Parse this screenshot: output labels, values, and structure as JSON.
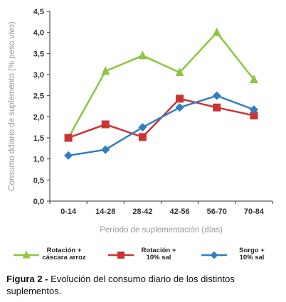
{
  "chart_data": {
    "type": "line",
    "categories": [
      "0-14",
      "14-28",
      "28-42",
      "42-56",
      "56-70",
      "70-84"
    ],
    "series": [
      {
        "name": "Rotación + cáscara arroz",
        "name_lines": [
          "Rotación +",
          "cáscara arroz"
        ],
        "color": "#8dc63f",
        "marker": "triangle",
        "values": [
          1.5,
          3.08,
          3.45,
          3.05,
          4.0,
          2.88
        ]
      },
      {
        "name": "Rotación + 10% sal",
        "name_lines": [
          "Rotación +",
          "10% sal"
        ],
        "color": "#cc3333",
        "marker": "square",
        "values": [
          1.5,
          1.82,
          1.52,
          2.43,
          2.22,
          2.03
        ]
      },
      {
        "name": "Sorgo + 10% sal",
        "name_lines": [
          "Sorgo +",
          "10% sal"
        ],
        "color": "#2f7ec2",
        "marker": "diamond",
        "values": [
          1.08,
          1.22,
          1.75,
          2.22,
          2.5,
          2.17
        ]
      }
    ],
    "xlabel": "Período de suplementación (días)",
    "ylabel": "Consumo ddiario de suplemento (% peso vivo)",
    "ylim": [
      0,
      4.5
    ],
    "yticks": [
      "0,0",
      "0,5",
      "1,0",
      "1,5",
      "2,0",
      "2,5",
      "3,0",
      "3,5",
      "4,0",
      "4,5"
    ],
    "grid": false,
    "legend": "bottom"
  },
  "caption": {
    "label": "Figura 2 -",
    "text": "Evolución del consumo diario de los distintos suplementos."
  }
}
